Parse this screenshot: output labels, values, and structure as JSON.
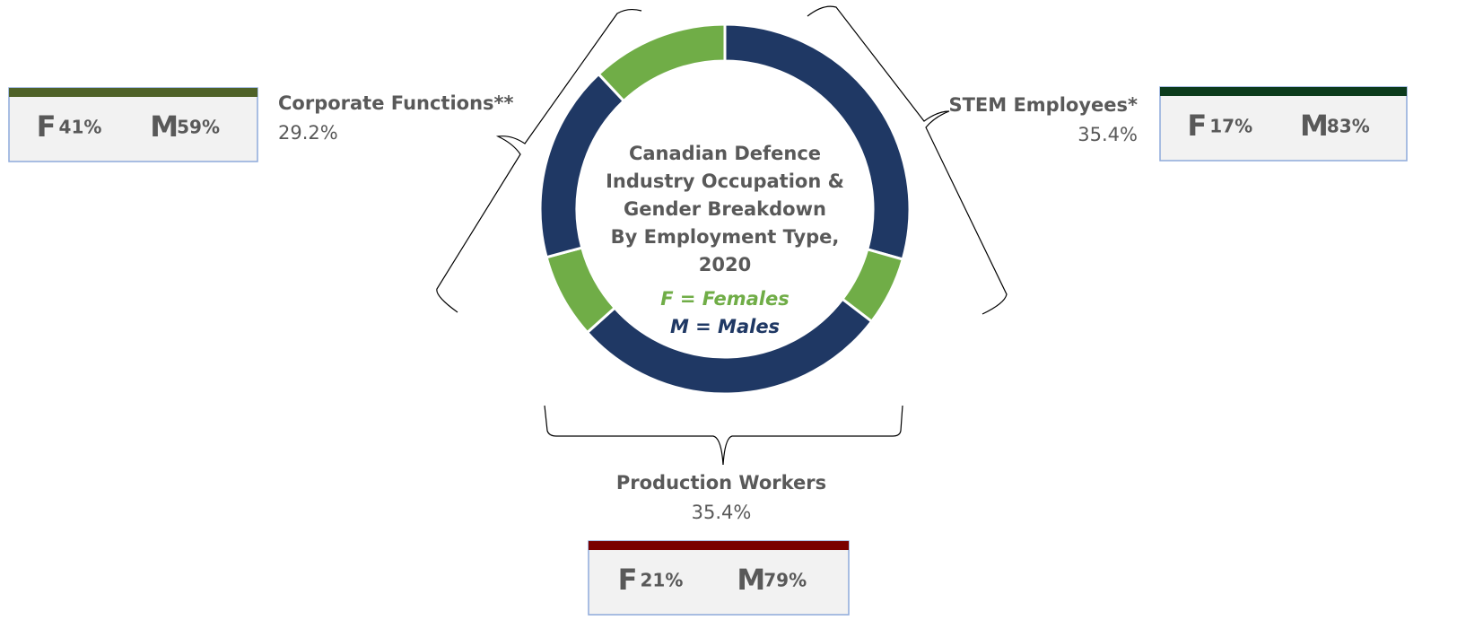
{
  "chart_data": {
    "type": "donut",
    "title_lines": [
      "Canadian Defence",
      "Industry Occupation &",
      "Gender Breakdown",
      "By Employment Type,",
      "2020"
    ],
    "series": [
      {
        "name": "F = Females",
        "letter": "F",
        "color": "#70ad47"
      },
      {
        "name": "M = Males",
        "letter": "M",
        "color": "#1f3864"
      }
    ],
    "groups": [
      {
        "name": "STEM Employees*",
        "share": 35.4,
        "share_label": "35.4%",
        "female": 17,
        "female_label": "17%",
        "male": 83,
        "male_label": "83%",
        "color": "#0c3b1c"
      },
      {
        "name": "Production Workers",
        "share": 35.4,
        "share_label": "35.4%",
        "female": 21,
        "female_label": "21%",
        "male": 79,
        "male_label": "79%",
        "color": "#7a0000"
      },
      {
        "name": "Corporate Functions**",
        "share": 29.2,
        "share_label": "29.2%",
        "female": 41,
        "female_label": "41%",
        "male": 59,
        "male_label": "59%",
        "color": "#4f6228"
      }
    ]
  }
}
